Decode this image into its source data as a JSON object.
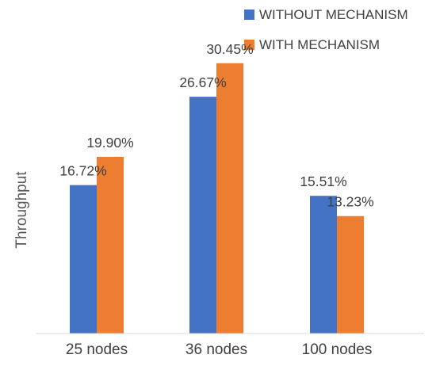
{
  "chart_data": {
    "type": "bar",
    "categories": [
      "25 nodes",
      "36 nodes",
      "100 nodes"
    ],
    "series": [
      {
        "name": "WITHOUT MECHANISM",
        "values": [
          16.72,
          26.67,
          15.51
        ],
        "labels": [
          "16.72%",
          "26.67%",
          "15.51%"
        ],
        "color": "#4472C4"
      },
      {
        "name": "WITH MECHANISM",
        "values": [
          19.9,
          30.45,
          13.23
        ],
        "labels": [
          "19.90%",
          "30.45%",
          "13.23%"
        ],
        "color": "#ED7D31"
      }
    ],
    "ylabel": "Throughput",
    "xlabel": "",
    "ylim": [
      0,
      34
    ],
    "grid": false,
    "legend": "top-right"
  }
}
